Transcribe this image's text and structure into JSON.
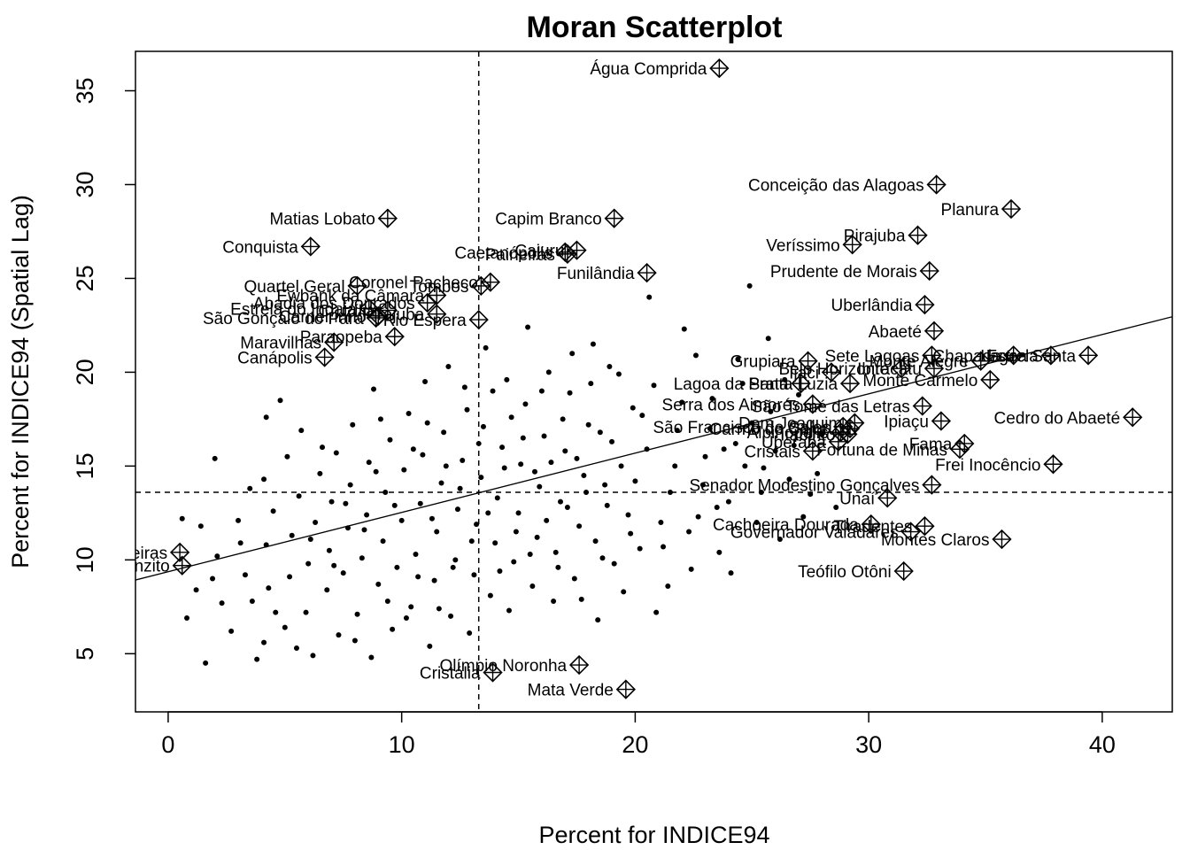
{
  "chart_data": {
    "type": "scatter",
    "title": "Moran Scatterplot",
    "xlabel": "Percent for INDICE94",
    "ylabel": "Percent for INDICE94 (Spatial Lag)",
    "xlim": [
      -1.4,
      43.0
    ],
    "ylim": [
      1.9,
      37.1
    ],
    "x_ticks": [
      0,
      10,
      20,
      30,
      40
    ],
    "y_ticks": [
      5,
      10,
      15,
      20,
      25,
      30,
      35
    ],
    "mean_x": 13.3,
    "mean_y": 13.6,
    "regression": {
      "intercept": 9.37,
      "slope": 0.316
    },
    "grid": false,
    "legend": "none",
    "influential_points": [
      {
        "label": "Água Comprida",
        "x": 23.6,
        "y": 36.2
      },
      {
        "label": "Conceição das Alagoas",
        "x": 32.9,
        "y": 30.0
      },
      {
        "label": "Planura",
        "x": 36.1,
        "y": 28.7
      },
      {
        "label": "Capim Branco",
        "x": 19.1,
        "y": 28.2
      },
      {
        "label": "Matias Lobato",
        "x": 9.4,
        "y": 28.2
      },
      {
        "label": "Pirajuba",
        "x": 32.1,
        "y": 27.3
      },
      {
        "label": "Veríssimo",
        "x": 29.3,
        "y": 26.8
      },
      {
        "label": "Conquista",
        "x": 6.1,
        "y": 26.7
      },
      {
        "label": "Cajuru",
        "x": 17.5,
        "y": 26.5
      },
      {
        "label": "Caetanópolis",
        "x": 17.0,
        "y": 26.4
      },
      {
        "label": "Paineiras",
        "x": 17.1,
        "y": 26.3
      },
      {
        "label": "Funilândia",
        "x": 20.5,
        "y": 25.3
      },
      {
        "label": "Prudente de Morais",
        "x": 32.6,
        "y": 25.4
      },
      {
        "label": "Coronel Pacheco",
        "x": 13.8,
        "y": 24.8
      },
      {
        "label": "Quartel Geral",
        "x": 8.1,
        "y": 24.6
      },
      {
        "label": "Tombos",
        "x": 13.4,
        "y": 24.6
      },
      {
        "label": "Ewbank da Câmara",
        "x": 11.5,
        "y": 24.1
      },
      {
        "label": "Abadia dos Dourados",
        "x": 11.1,
        "y": 23.7
      },
      {
        "label": "Estrela do Indaiá",
        "x": 8.6,
        "y": 23.4
      },
      {
        "label": "Cruzília",
        "x": 9.4,
        "y": 23.3
      },
      {
        "label": "Uberlândia",
        "x": 32.4,
        "y": 23.6
      },
      {
        "label": "Carneirinho",
        "x": 9.0,
        "y": 23.0
      },
      {
        "label": "Pirajuba",
        "x": 11.5,
        "y": 23.1
      },
      {
        "label": "São Gonçalo do Pará",
        "x": 8.9,
        "y": 22.9
      },
      {
        "label": "Rio Espera",
        "x": 13.3,
        "y": 22.8
      },
      {
        "label": "Abaeté",
        "x": 32.8,
        "y": 22.2
      },
      {
        "label": "Paraopeba",
        "x": 9.7,
        "y": 21.9
      },
      {
        "label": "Maravilhas",
        "x": 7.1,
        "y": 21.6
      },
      {
        "label": "Canápolis",
        "x": 6.7,
        "y": 20.8
      },
      {
        "label": "Sete Lagoas",
        "x": 32.7,
        "y": 20.9
      },
      {
        "label": "Monte Alegre",
        "x": 34.8,
        "y": 20.6
      },
      {
        "label": "Chapada",
        "x": 36.2,
        "y": 20.9
      },
      {
        "label": "Estrela",
        "x": 37.8,
        "y": 20.9
      },
      {
        "label": "Lagoa Santa",
        "x": 39.4,
        "y": 20.9
      },
      {
        "label": "Grupiara",
        "x": 27.4,
        "y": 20.6
      },
      {
        "label": "Belo Horizonte",
        "x": 31.4,
        "y": 20.2
      },
      {
        "label": "Ibiracatu",
        "x": 32.8,
        "y": 20.2
      },
      {
        "label": "Ijaci",
        "x": 28.4,
        "y": 20.0
      },
      {
        "label": "Monte Carmelo",
        "x": 35.2,
        "y": 19.6
      },
      {
        "label": "Santa Luzia",
        "x": 29.2,
        "y": 19.4
      },
      {
        "label": "Lagoa da Prata",
        "x": 27.1,
        "y": 19.4
      },
      {
        "label": "Cedro do Abaeté",
        "x": 41.3,
        "y": 17.6
      },
      {
        "label": "Serra dos Aimorés",
        "x": 27.6,
        "y": 18.3
      },
      {
        "label": "São Tomé das Letras",
        "x": 32.3,
        "y": 18.2
      },
      {
        "label": "Dom Joaquim",
        "x": 29.4,
        "y": 17.3
      },
      {
        "label": "Ipiaçu",
        "x": 33.1,
        "y": 17.4
      },
      {
        "label": "São Francisco de Sales",
        "x": 28.9,
        "y": 17.1
      },
      {
        "label": "Carmo do Cajuru",
        "x": 29.2,
        "y": 17.0
      },
      {
        "label": "Alpinópolis",
        "x": 28.8,
        "y": 16.8
      },
      {
        "label": "Itabirito",
        "x": 29.1,
        "y": 16.7
      },
      {
        "label": "Uberaba",
        "x": 28.7,
        "y": 16.3
      },
      {
        "label": "Fama",
        "x": 34.1,
        "y": 16.2
      },
      {
        "label": "Fortuna de Minas",
        "x": 33.9,
        "y": 15.9
      },
      {
        "label": "Cristais",
        "x": 27.6,
        "y": 15.8
      },
      {
        "label": "Frei Inocêncio",
        "x": 37.9,
        "y": 15.1
      },
      {
        "label": "Senador Modestino Gonçalves",
        "x": 32.7,
        "y": 14.0
      },
      {
        "label": "Unaí",
        "x": 30.8,
        "y": 13.3
      },
      {
        "label": "Cachoeira Dourada",
        "x": 30.1,
        "y": 11.9
      },
      {
        "label": "Tiradentes",
        "x": 32.4,
        "y": 11.8
      },
      {
        "label": "Governador Valadares",
        "x": 31.8,
        "y": 11.5
      },
      {
        "label": "Montes Claros",
        "x": 35.7,
        "y": 11.1
      },
      {
        "label": "Teófilo Otôni",
        "x": 31.5,
        "y": 9.4
      },
      {
        "label": "Olímpio Noronha",
        "x": 17.6,
        "y": 4.4
      },
      {
        "label": "Cristália",
        "x": 13.9,
        "y": 4.0
      },
      {
        "label": "Mata Verde",
        "x": 19.6,
        "y": 3.1
      },
      {
        "label": "Vargem Alegre das Palmeiras",
        "x": 0.5,
        "y": 10.4
      },
      {
        "label": "São João Evangelista Gonzito",
        "x": 0.6,
        "y": 9.7
      }
    ],
    "points": [
      {
        "x": 1.6,
        "y": 4.5
      },
      {
        "x": 0.8,
        "y": 6.9
      },
      {
        "x": 1.2,
        "y": 8.4
      },
      {
        "x": 1.9,
        "y": 9.0
      },
      {
        "x": 2.3,
        "y": 7.7
      },
      {
        "x": 2.1,
        "y": 10.2
      },
      {
        "x": 1.4,
        "y": 11.8
      },
      {
        "x": 0.6,
        "y": 12.2
      },
      {
        "x": 2.0,
        "y": 15.4
      },
      {
        "x": 3.0,
        "y": 12.1
      },
      {
        "x": 3.3,
        "y": 9.2
      },
      {
        "x": 3.6,
        "y": 7.8
      },
      {
        "x": 3.8,
        "y": 4.7
      },
      {
        "x": 4.1,
        "y": 5.6
      },
      {
        "x": 4.3,
        "y": 8.5
      },
      {
        "x": 4.2,
        "y": 10.8
      },
      {
        "x": 4.5,
        "y": 12.6
      },
      {
        "x": 4.1,
        "y": 14.3
      },
      {
        "x": 4.2,
        "y": 17.6
      },
      {
        "x": 4.8,
        "y": 18.5
      },
      {
        "x": 5.0,
        "y": 6.4
      },
      {
        "x": 5.2,
        "y": 9.1
      },
      {
        "x": 5.3,
        "y": 11.3
      },
      {
        "x": 5.6,
        "y": 13.4
      },
      {
        "x": 5.7,
        "y": 16.9
      },
      {
        "x": 5.9,
        "y": 7.2
      },
      {
        "x": 6.0,
        "y": 9.8
      },
      {
        "x": 6.3,
        "y": 12.0
      },
      {
        "x": 6.5,
        "y": 14.6
      },
      {
        "x": 6.2,
        "y": 4.9
      },
      {
        "x": 6.8,
        "y": 8.4
      },
      {
        "x": 6.9,
        "y": 10.5
      },
      {
        "x": 7.0,
        "y": 13.1
      },
      {
        "x": 7.2,
        "y": 15.7
      },
      {
        "x": 7.3,
        "y": 6.0
      },
      {
        "x": 7.5,
        "y": 9.3
      },
      {
        "x": 7.7,
        "y": 11.7
      },
      {
        "x": 7.8,
        "y": 14.0
      },
      {
        "x": 7.9,
        "y": 17.2
      },
      {
        "x": 8.1,
        "y": 7.1
      },
      {
        "x": 8.3,
        "y": 10.1
      },
      {
        "x": 8.5,
        "y": 12.4
      },
      {
        "x": 8.6,
        "y": 15.2
      },
      {
        "x": 8.7,
        "y": 4.8
      },
      {
        "x": 8.8,
        "y": 19.1
      },
      {
        "x": 9.0,
        "y": 8.7
      },
      {
        "x": 9.2,
        "y": 11.0
      },
      {
        "x": 9.3,
        "y": 13.6
      },
      {
        "x": 9.5,
        "y": 16.4
      },
      {
        "x": 9.6,
        "y": 6.3
      },
      {
        "x": 9.8,
        "y": 9.6
      },
      {
        "x": 10.0,
        "y": 12.1
      },
      {
        "x": 10.1,
        "y": 14.8
      },
      {
        "x": 10.3,
        "y": 17.8
      },
      {
        "x": 10.4,
        "y": 7.5
      },
      {
        "x": 10.6,
        "y": 10.3
      },
      {
        "x": 10.8,
        "y": 13.0
      },
      {
        "x": 10.9,
        "y": 15.6
      },
      {
        "x": 11.0,
        "y": 19.5
      },
      {
        "x": 11.2,
        "y": 5.4
      },
      {
        "x": 11.4,
        "y": 8.9
      },
      {
        "x": 11.5,
        "y": 11.5
      },
      {
        "x": 11.7,
        "y": 14.1
      },
      {
        "x": 11.8,
        "y": 16.8
      },
      {
        "x": 12.0,
        "y": 20.3
      },
      {
        "x": 12.1,
        "y": 7.0
      },
      {
        "x": 12.3,
        "y": 10.0
      },
      {
        "x": 12.4,
        "y": 12.7
      },
      {
        "x": 12.6,
        "y": 15.3
      },
      {
        "x": 12.8,
        "y": 18.0
      },
      {
        "x": 12.9,
        "y": 6.1
      },
      {
        "x": 13.1,
        "y": 9.2
      },
      {
        "x": 13.2,
        "y": 11.9
      },
      {
        "x": 13.4,
        "y": 14.4
      },
      {
        "x": 13.5,
        "y": 17.1
      },
      {
        "x": 13.6,
        "y": 21.3
      },
      {
        "x": 13.8,
        "y": 8.1
      },
      {
        "x": 14.0,
        "y": 10.9
      },
      {
        "x": 14.1,
        "y": 13.3
      },
      {
        "x": 14.3,
        "y": 16.0
      },
      {
        "x": 14.5,
        "y": 19.6
      },
      {
        "x": 14.6,
        "y": 7.3
      },
      {
        "x": 14.8,
        "y": 9.9
      },
      {
        "x": 15.0,
        "y": 12.5
      },
      {
        "x": 15.1,
        "y": 15.1
      },
      {
        "x": 15.3,
        "y": 18.3
      },
      {
        "x": 15.4,
        "y": 22.4
      },
      {
        "x": 15.6,
        "y": 8.6
      },
      {
        "x": 15.8,
        "y": 11.2
      },
      {
        "x": 15.9,
        "y": 13.9
      },
      {
        "x": 16.1,
        "y": 16.6
      },
      {
        "x": 16.3,
        "y": 20.0
      },
      {
        "x": 16.5,
        "y": 7.8
      },
      {
        "x": 16.6,
        "y": 10.4
      },
      {
        "x": 16.8,
        "y": 13.1
      },
      {
        "x": 17.0,
        "y": 15.8
      },
      {
        "x": 17.2,
        "y": 18.9
      },
      {
        "x": 17.4,
        "y": 9.0
      },
      {
        "x": 17.6,
        "y": 11.8
      },
      {
        "x": 17.8,
        "y": 14.5
      },
      {
        "x": 18.0,
        "y": 17.2
      },
      {
        "x": 18.2,
        "y": 21.5
      },
      {
        "x": 18.4,
        "y": 6.8
      },
      {
        "x": 18.6,
        "y": 10.1
      },
      {
        "x": 18.8,
        "y": 12.9
      },
      {
        "x": 19.0,
        "y": 16.3
      },
      {
        "x": 19.3,
        "y": 19.9
      },
      {
        "x": 19.5,
        "y": 8.3
      },
      {
        "x": 19.8,
        "y": 11.4
      },
      {
        "x": 20.0,
        "y": 14.2
      },
      {
        "x": 20.3,
        "y": 17.7
      },
      {
        "x": 20.6,
        "y": 24.0
      },
      {
        "x": 20.9,
        "y": 7.2
      },
      {
        "x": 21.2,
        "y": 10.7
      },
      {
        "x": 21.5,
        "y": 13.6
      },
      {
        "x": 21.8,
        "y": 16.9
      },
      {
        "x": 22.1,
        "y": 22.3
      },
      {
        "x": 22.4,
        "y": 9.5
      },
      {
        "x": 22.7,
        "y": 12.3
      },
      {
        "x": 23.0,
        "y": 15.5
      },
      {
        "x": 23.3,
        "y": 18.6
      },
      {
        "x": 23.6,
        "y": 10.4
      },
      {
        "x": 24.0,
        "y": 13.1
      },
      {
        "x": 24.3,
        "y": 16.2
      },
      {
        "x": 24.6,
        "y": 19.4
      },
      {
        "x": 24.9,
        "y": 24.6
      },
      {
        "x": 25.2,
        "y": 12.0
      },
      {
        "x": 25.5,
        "y": 14.9
      },
      {
        "x": 25.8,
        "y": 17.9
      },
      {
        "x": 26.2,
        "y": 11.1
      },
      {
        "x": 26.6,
        "y": 14.3
      },
      {
        "x": 27.0,
        "y": 18.8
      },
      {
        "x": 27.5,
        "y": 13.5
      },
      {
        "x": 28.0,
        "y": 16.7
      },
      {
        "x": 28.6,
        "y": 12.8
      },
      {
        "x": 2.7,
        "y": 6.2
      },
      {
        "x": 3.1,
        "y": 10.9
      },
      {
        "x": 3.5,
        "y": 13.8
      },
      {
        "x": 4.6,
        "y": 7.2
      },
      {
        "x": 5.1,
        "y": 15.5
      },
      {
        "x": 5.5,
        "y": 5.3
      },
      {
        "x": 6.1,
        "y": 11.1
      },
      {
        "x": 6.6,
        "y": 16.0
      },
      {
        "x": 7.1,
        "y": 9.7
      },
      {
        "x": 7.6,
        "y": 13.0
      },
      {
        "x": 8.0,
        "y": 5.7
      },
      {
        "x": 8.4,
        "y": 11.6
      },
      {
        "x": 8.9,
        "y": 14.7
      },
      {
        "x": 9.1,
        "y": 17.5
      },
      {
        "x": 9.4,
        "y": 7.8
      },
      {
        "x": 9.7,
        "y": 12.9
      },
      {
        "x": 10.2,
        "y": 6.9
      },
      {
        "x": 10.5,
        "y": 15.9
      },
      {
        "x": 10.7,
        "y": 9.1
      },
      {
        "x": 11.1,
        "y": 17.3
      },
      {
        "x": 11.3,
        "y": 12.2
      },
      {
        "x": 11.6,
        "y": 7.4
      },
      {
        "x": 11.9,
        "y": 15.0
      },
      {
        "x": 12.2,
        "y": 9.6
      },
      {
        "x": 12.5,
        "y": 13.8
      },
      {
        "x": 12.7,
        "y": 19.2
      },
      {
        "x": 13.0,
        "y": 11.0
      },
      {
        "x": 13.3,
        "y": 16.2
      },
      {
        "x": 13.7,
        "y": 12.5
      },
      {
        "x": 13.9,
        "y": 19.0
      },
      {
        "x": 14.2,
        "y": 9.4
      },
      {
        "x": 14.4,
        "y": 14.9
      },
      {
        "x": 14.7,
        "y": 17.6
      },
      {
        "x": 14.9,
        "y": 11.5
      },
      {
        "x": 15.2,
        "y": 16.5
      },
      {
        "x": 15.5,
        "y": 10.3
      },
      {
        "x": 15.7,
        "y": 14.7
      },
      {
        "x": 16.0,
        "y": 19.0
      },
      {
        "x": 16.2,
        "y": 12.1
      },
      {
        "x": 16.4,
        "y": 15.2
      },
      {
        "x": 16.7,
        "y": 9.6
      },
      {
        "x": 16.9,
        "y": 17.5
      },
      {
        "x": 17.1,
        "y": 12.8
      },
      {
        "x": 17.3,
        "y": 21.0
      },
      {
        "x": 17.5,
        "y": 15.4
      },
      {
        "x": 17.7,
        "y": 7.9
      },
      {
        "x": 17.9,
        "y": 13.6
      },
      {
        "x": 18.1,
        "y": 19.4
      },
      {
        "x": 18.3,
        "y": 11.0
      },
      {
        "x": 18.5,
        "y": 16.8
      },
      {
        "x": 18.7,
        "y": 14.0
      },
      {
        "x": 18.9,
        "y": 20.3
      },
      {
        "x": 19.1,
        "y": 9.8
      },
      {
        "x": 19.4,
        "y": 15.0
      },
      {
        "x": 19.7,
        "y": 12.4
      },
      {
        "x": 19.9,
        "y": 18.1
      },
      {
        "x": 20.2,
        "y": 10.6
      },
      {
        "x": 20.5,
        "y": 15.9
      },
      {
        "x": 20.8,
        "y": 19.3
      },
      {
        "x": 21.1,
        "y": 12.0
      },
      {
        "x": 21.4,
        "y": 8.6
      },
      {
        "x": 21.7,
        "y": 15.0
      },
      {
        "x": 22.0,
        "y": 18.4
      },
      {
        "x": 22.3,
        "y": 11.5
      },
      {
        "x": 22.6,
        "y": 20.9
      },
      {
        "x": 22.9,
        "y": 14.0
      },
      {
        "x": 23.2,
        "y": 17.0
      },
      {
        "x": 23.5,
        "y": 12.8
      },
      {
        "x": 23.8,
        "y": 15.9
      },
      {
        "x": 24.1,
        "y": 9.3
      },
      {
        "x": 24.4,
        "y": 20.7
      },
      {
        "x": 24.7,
        "y": 15.0
      },
      {
        "x": 25.0,
        "y": 17.3
      },
      {
        "x": 25.4,
        "y": 13.6
      },
      {
        "x": 25.7,
        "y": 21.8
      },
      {
        "x": 26.0,
        "y": 15.8
      },
      {
        "x": 26.4,
        "y": 19.6
      },
      {
        "x": 26.8,
        "y": 16.1
      },
      {
        "x": 27.2,
        "y": 12.3
      },
      {
        "x": 27.8,
        "y": 14.6
      }
    ]
  }
}
